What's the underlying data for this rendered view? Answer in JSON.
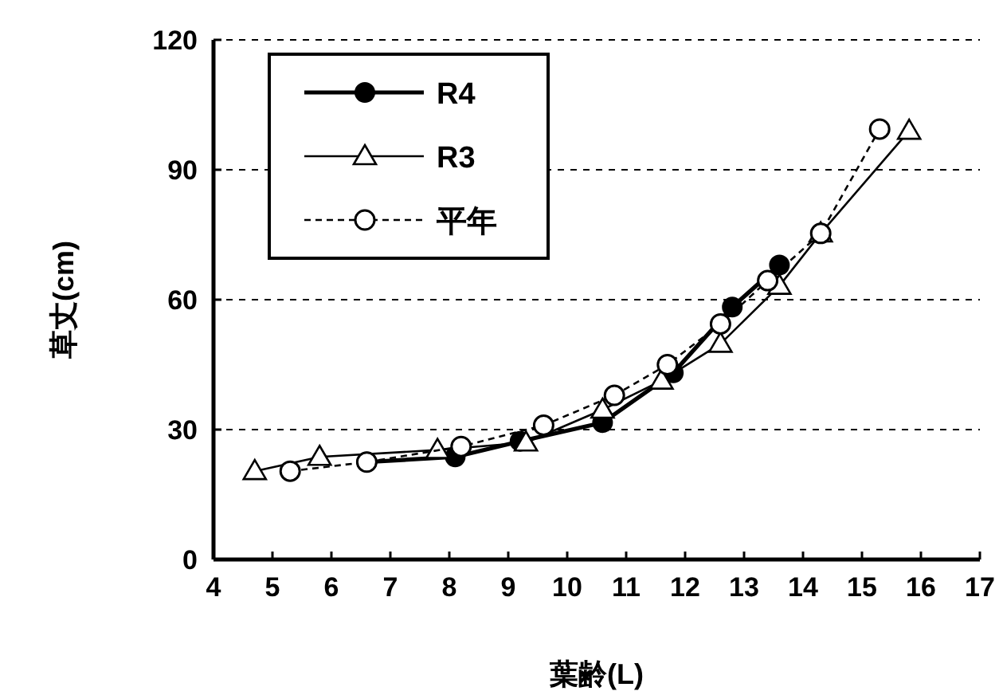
{
  "chart_data": {
    "type": "line",
    "xlabel": "葉齢(L)",
    "ylabel": "草丈(cm)",
    "xlim": [
      4,
      17
    ],
    "xticks": [
      4,
      5,
      6,
      7,
      8,
      9,
      10,
      11,
      12,
      13,
      14,
      15,
      16,
      17
    ],
    "ylim": [
      0,
      120
    ],
    "yticks": [
      0,
      30,
      60,
      90,
      120
    ],
    "grid": "y",
    "legend": "top left",
    "series": [
      {
        "name": "R4",
        "color": "#000000",
        "marker": "circle",
        "line_style": "solid",
        "x": [
          6.6,
          8.1,
          9.2,
          10.6,
          11.8,
          12.8,
          13.6
        ],
        "values": [
          22.5,
          23.7,
          27.3,
          31.6,
          43.1,
          58.3,
          68
        ]
      },
      {
        "name": "R3",
        "color": "#000000",
        "marker": "triangle",
        "line_style": "solid",
        "x": [
          4.7,
          5.8,
          7.8,
          9.3,
          10.6,
          11.6,
          12.6,
          13.6,
          14.3,
          15.8
        ],
        "values": [
          20.4,
          23.7,
          25.3,
          27,
          34.6,
          41.3,
          49.8,
          63.2,
          75.3,
          99
        ]
      },
      {
        "name": "平年",
        "color": "#000000",
        "marker": "circle_open",
        "line_style": "dashed",
        "x": [
          5.3,
          6.6,
          8.2,
          9.6,
          10.8,
          11.7,
          12.6,
          13.4,
          14.3,
          15.3
        ],
        "values": [
          20.4,
          22.5,
          26.1,
          31,
          37.9,
          45,
          54.4,
          64.4,
          75.3,
          99.4
        ]
      }
    ]
  }
}
